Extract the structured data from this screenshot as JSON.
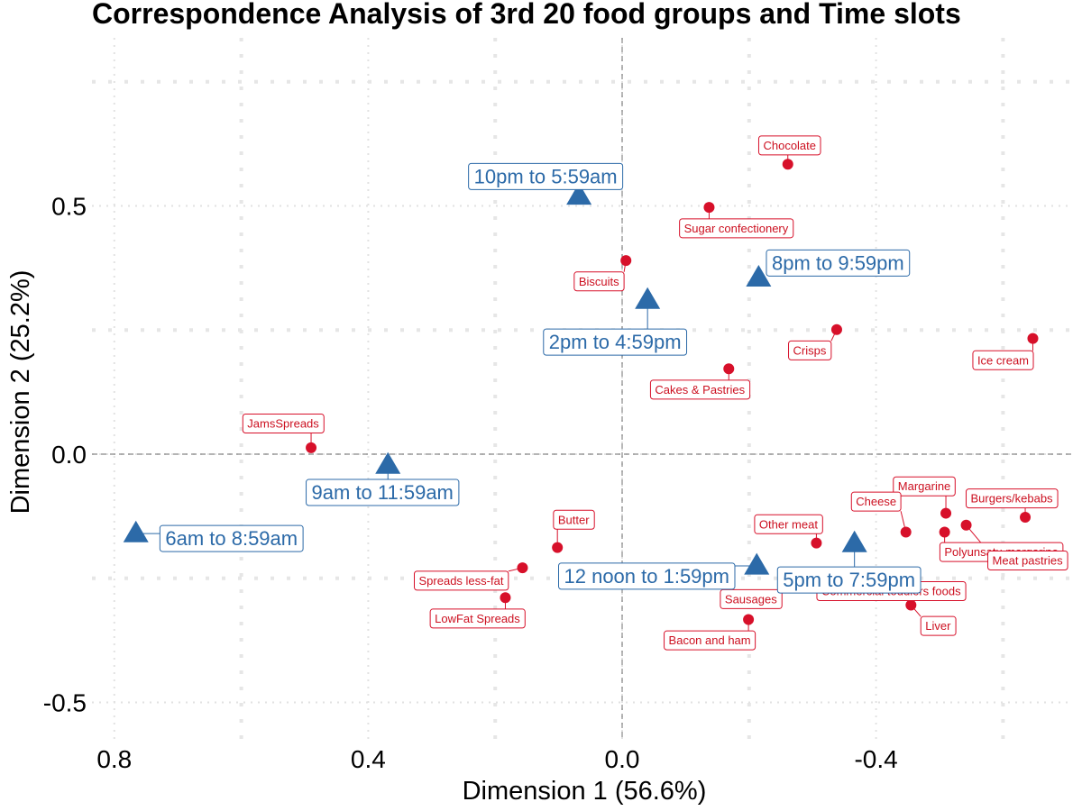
{
  "chart_data": {
    "type": "scatter",
    "title": "Correspondence Analysis of 3rd 20 food groups and Time slots",
    "xlabel": "Dimension 1 (56.6%)",
    "ylabel": "Dimension 2 (25.2%)",
    "xlim": [
      0.8,
      -0.72
    ],
    "ylim": [
      -0.58,
      0.78
    ],
    "x_ticks": [
      0.8,
      0.4,
      0.0,
      -0.4
    ],
    "x_tick_labels": [
      "0.8",
      "0.4",
      "0.0",
      "-0.4"
    ],
    "y_ticks": [
      -0.5,
      0.0,
      0.5
    ],
    "y_tick_labels": [
      "-0.5",
      "0.0",
      "0.5"
    ],
    "grid": true,
    "reference_lines": {
      "x": 0.0,
      "y": 0.0
    },
    "colors": {
      "food": "#d7102a",
      "time": "#2c6aa8"
    },
    "series": [
      {
        "kind": "food",
        "marker": "circle",
        "points": [
          {
            "label": "Chocolate",
            "x": -0.261,
            "y": 0.584
          },
          {
            "label": "Sugar confectionery",
            "x": -0.137,
            "y": 0.497
          },
          {
            "label": "Biscuits",
            "x": -0.006,
            "y": 0.39
          },
          {
            "label": "Crisps",
            "x": -0.338,
            "y": 0.251
          },
          {
            "label": "Ice cream",
            "x": -0.647,
            "y": 0.233
          },
          {
            "label": "Cakes & Pastries",
            "x": -0.168,
            "y": 0.172
          },
          {
            "label": "JamsSpreads",
            "x": 0.49,
            "y": 0.013
          },
          {
            "label": "Margarine",
            "x": -0.51,
            "y": -0.119
          },
          {
            "label": "Burgers/kebabs",
            "x": -0.635,
            "y": -0.127
          },
          {
            "label": "Cheese",
            "x": -0.447,
            "y": -0.157
          },
          {
            "label": "Other meat",
            "x": -0.306,
            "y": -0.179
          },
          {
            "label": "Polyunsatu margarine",
            "x": -0.508,
            "y": -0.157
          },
          {
            "label": "Meat pastries",
            "x": -0.542,
            "y": -0.143
          },
          {
            "label": "Butter",
            "x": 0.102,
            "y": -0.188
          },
          {
            "label": "Spreads less-fat",
            "x": 0.157,
            "y": -0.229
          },
          {
            "label": "LowFat Spreads",
            "x": 0.184,
            "y": -0.289
          },
          {
            "label": "Sausages",
            "x": -0.281,
            "y": -0.25
          },
          {
            "label": "Commercial toddlers foods",
            "x": -0.32,
            "y": -0.252
          },
          {
            "label": "Liver",
            "x": -0.455,
            "y": -0.304
          },
          {
            "label": "Bacon and ham",
            "x": -0.199,
            "y": -0.333
          }
        ]
      },
      {
        "kind": "time",
        "marker": "triangle",
        "points": [
          {
            "label": "10pm to 5:59am",
            "x": 0.068,
            "y": 0.52
          },
          {
            "label": "8pm to 9:59pm",
            "x": -0.215,
            "y": 0.355
          },
          {
            "label": "2pm to 4:59pm",
            "x": -0.04,
            "y": 0.31
          },
          {
            "label": "9am to 11:59am",
            "x": 0.369,
            "y": -0.022
          },
          {
            "label": "6am to 8:59am",
            "x": 0.766,
            "y": -0.16
          },
          {
            "label": "5pm to 7:59pm",
            "x": -0.366,
            "y": -0.18
          },
          {
            "label": "12 noon to 1:59pm",
            "x": -0.212,
            "y": -0.225
          }
        ]
      }
    ]
  }
}
